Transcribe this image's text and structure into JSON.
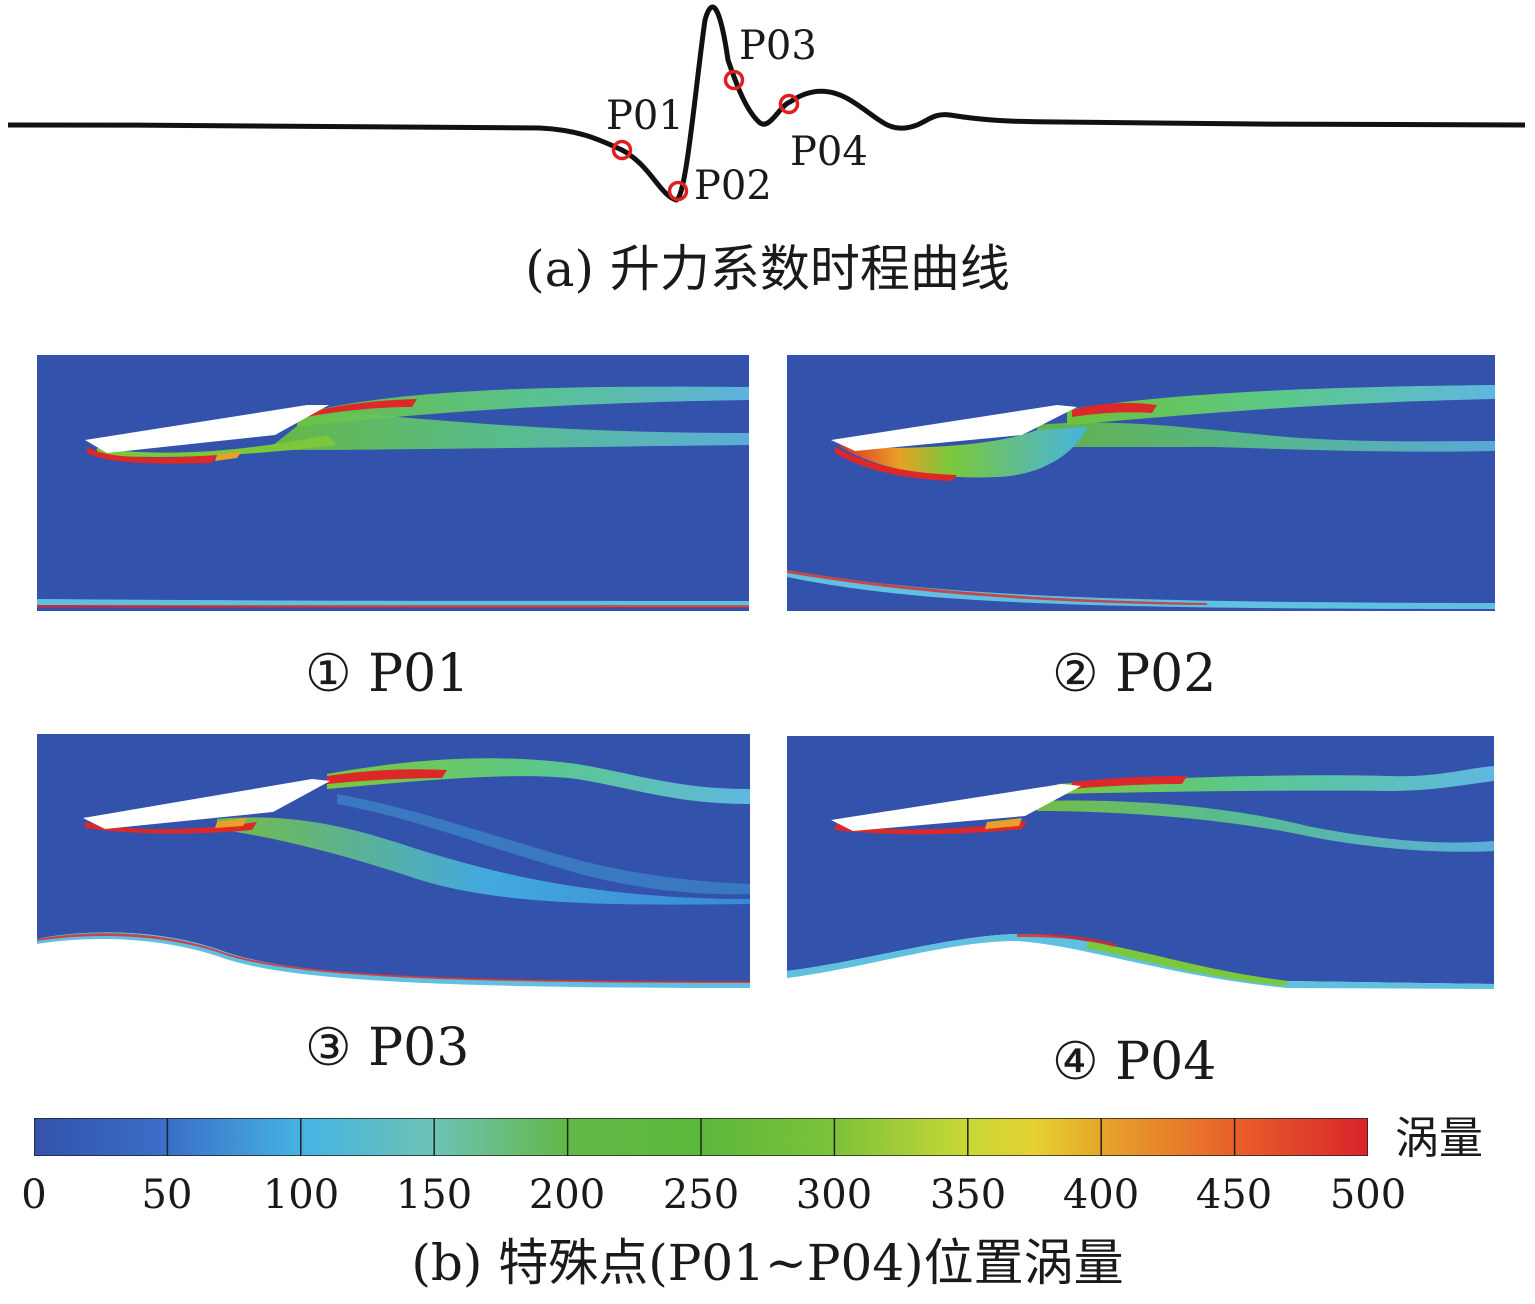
{
  "figure_a": {
    "caption": "(a) 升力系数时程曲线",
    "points": [
      {
        "id": "P01",
        "label": "P01"
      },
      {
        "id": "P02",
        "label": "P02"
      },
      {
        "id": "P03",
        "label": "P03"
      },
      {
        "id": "P04",
        "label": "P04"
      }
    ],
    "curve_color": "#111111",
    "marker_color": "#e02020"
  },
  "figure_b": {
    "caption": "(b) 特殊点(P01~P04)位置涡量",
    "panels": [
      {
        "label": "① P01"
      },
      {
        "label": "② P02"
      },
      {
        "label": "③ P03"
      },
      {
        "label": "④ P04"
      }
    ],
    "colorbar": {
      "title": "涡量",
      "ticks": [
        "0",
        "50",
        "100",
        "150",
        "200",
        "250",
        "300",
        "350",
        "400",
        "450",
        "500"
      ],
      "min": 0,
      "max": 500,
      "colors": [
        "#3352ab",
        "#3a6fc8",
        "#45b3e3",
        "#6cc3b5",
        "#63b848",
        "#5cb83a",
        "#7dc23a",
        "#c8d836",
        "#e6a52a",
        "#e8602a",
        "#d8242a"
      ]
    }
  }
}
